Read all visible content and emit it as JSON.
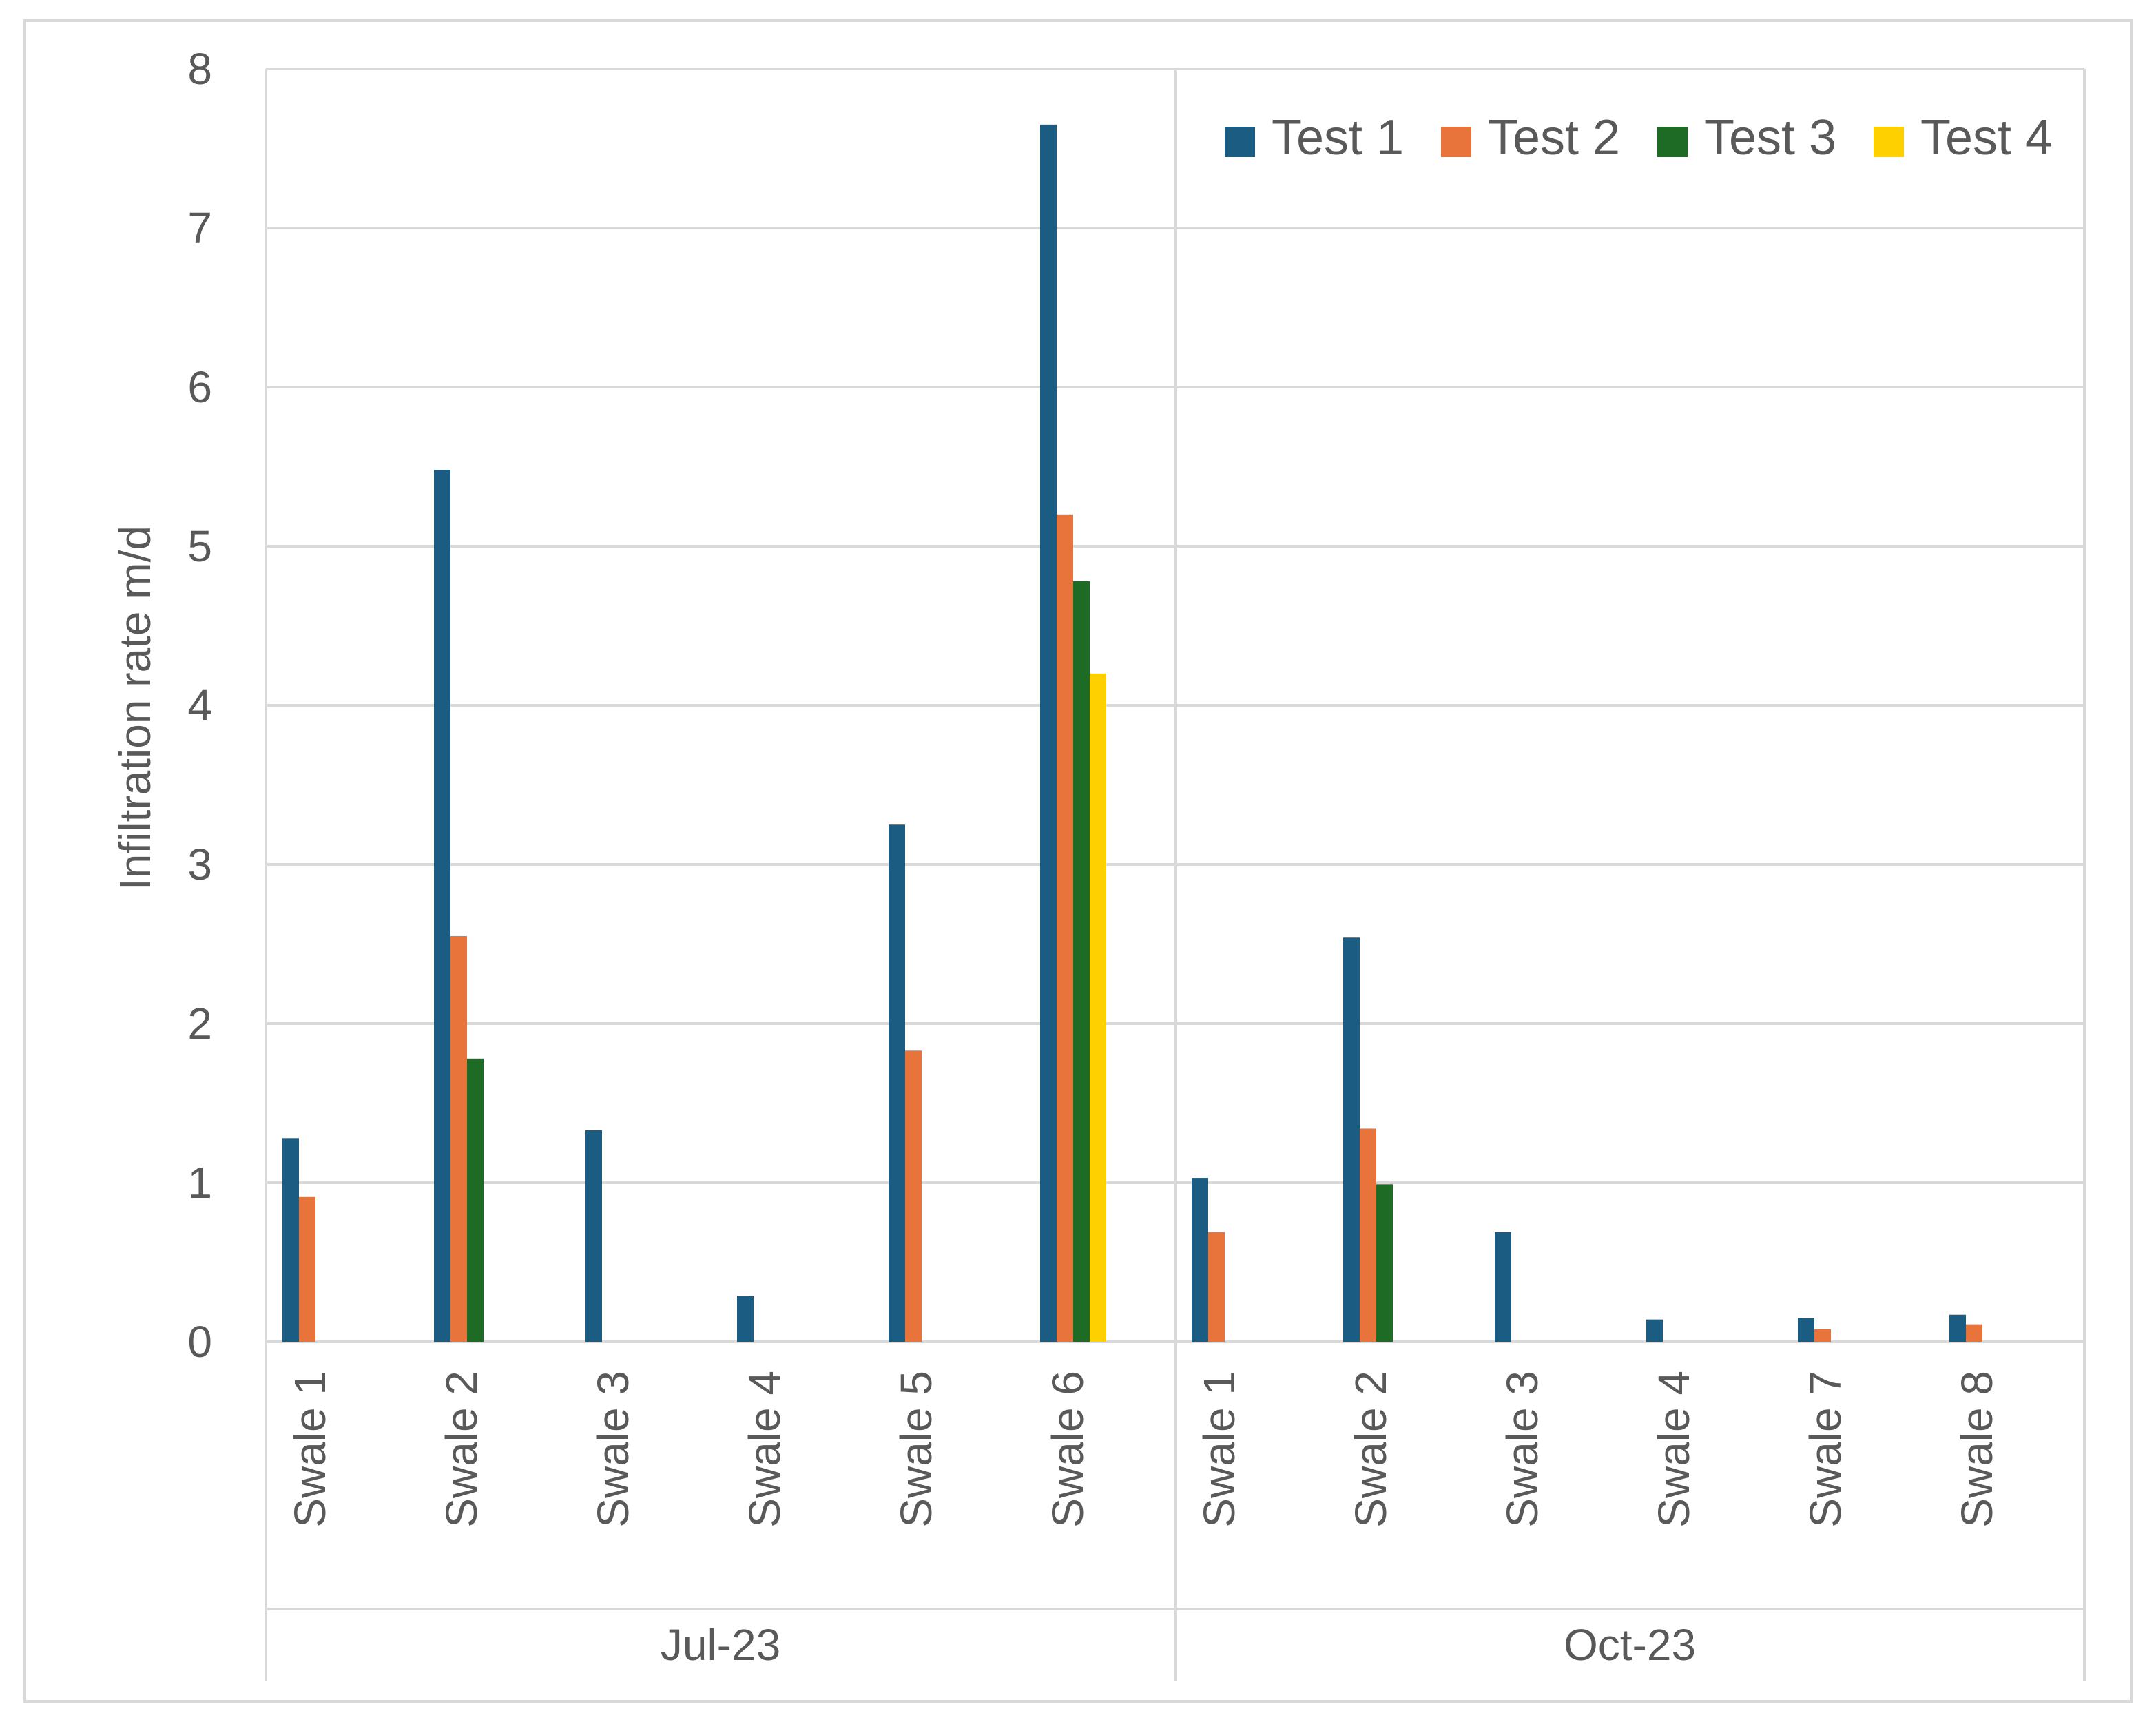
{
  "chart_data": {
    "type": "bar",
    "title": "",
    "xlabel": "",
    "ylabel": "Infiltration rate m/d",
    "ylim": [
      0,
      8
    ],
    "yticks": [
      "0",
      "1",
      "2",
      "3",
      "4",
      "5",
      "6",
      "7",
      "8"
    ],
    "grid": true,
    "legend_position": "top-right",
    "groups": [
      {
        "label": "Jul-23",
        "categories": [
          "Swale 1",
          "Swale 2",
          "Swale 3",
          "Swale 4",
          "Swale 5",
          "Swale 6"
        ]
      },
      {
        "label": "Oct-23",
        "categories": [
          "Swale 1",
          "Swale 2",
          "Swale 3",
          "Swale 4",
          "Swale 7",
          "Swale 8"
        ]
      }
    ],
    "series": [
      {
        "name": "Test 1",
        "color": "#1a5c82",
        "values": [
          1.28,
          5.48,
          1.33,
          0.29,
          3.25,
          7.65,
          1.03,
          2.54,
          0.69,
          0.14,
          0.15,
          0.17
        ]
      },
      {
        "name": "Test 2",
        "color": "#e8743b",
        "values": [
          0.91,
          2.55,
          null,
          null,
          1.83,
          5.2,
          0.69,
          1.34,
          null,
          null,
          0.08,
          0.11
        ]
      },
      {
        "name": "Test 3",
        "color": "#1e6b26",
        "values": [
          null,
          1.78,
          null,
          null,
          null,
          4.78,
          null,
          0.99,
          null,
          null,
          null,
          null
        ]
      },
      {
        "name": "Test 4",
        "color": "#ffd000",
        "values": [
          null,
          null,
          null,
          null,
          null,
          4.2,
          null,
          null,
          null,
          null,
          null,
          null
        ]
      }
    ]
  }
}
